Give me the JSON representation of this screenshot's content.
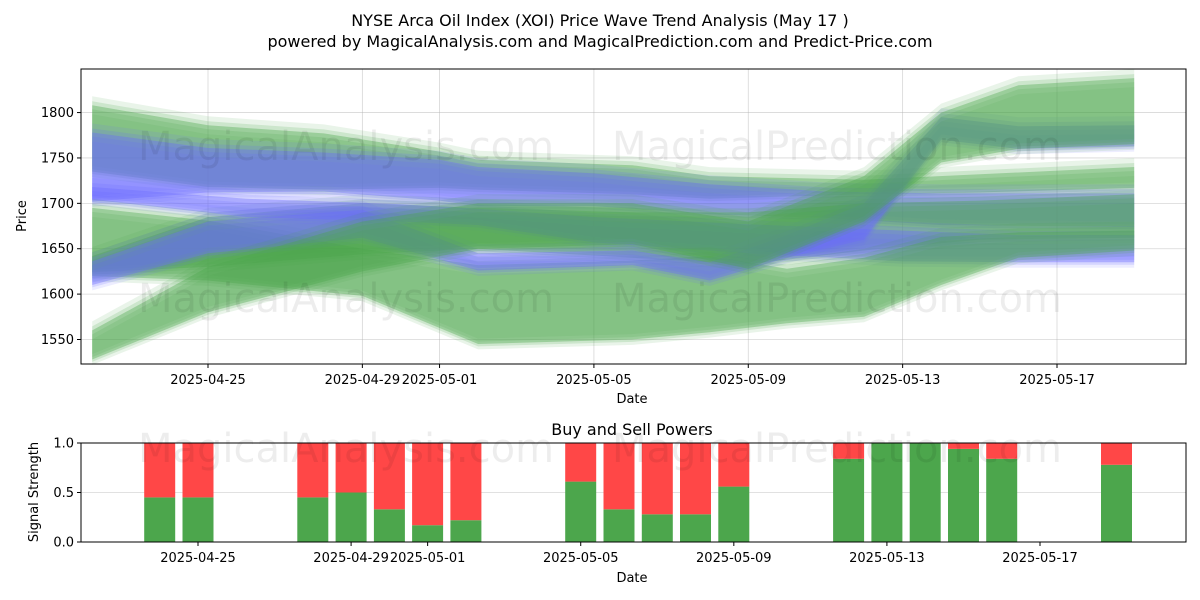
{
  "title_line1": "NYSE Arca Oil Index (XOI) Price Wave Trend Analysis (May 17 )",
  "title_line2": "powered by MagicalAnalysis.com and MagicalPrediction.com and Predict-Price.com",
  "watermarks": [
    "MagicalAnalysis.com",
    "MagicalPrediction.com"
  ],
  "colors": {
    "green": "#4ca84c",
    "blue": "#6b6bff",
    "buy": "#4ca64c",
    "sell": "#ff4747"
  },
  "chart_data": [
    {
      "type": "area",
      "title": "",
      "xlabel": "Date",
      "ylabel": "Price",
      "ylim": [
        1523,
        1848
      ],
      "x_ticks": [
        "2025-04-25",
        "2025-04-29",
        "2025-05-01",
        "2025-05-05",
        "2025-05-09",
        "2025-05-13",
        "2025-05-17"
      ],
      "y_ticks": [
        1550,
        1600,
        1650,
        1700,
        1750,
        1800
      ],
      "grid": true,
      "series": [
        {
          "color": "green",
          "x": [
            "2025-04-22",
            "2025-04-25",
            "2025-04-28",
            "2025-05-01",
            "2025-05-02",
            "2025-05-06",
            "2025-05-08",
            "2025-05-12",
            "2025-05-15",
            "2025-05-19"
          ],
          "lower": [
            1735,
            1718,
            1715,
            1717,
            1715,
            1710,
            1705,
            1710,
            1712,
            1717
          ],
          "upper": [
            1808,
            1786,
            1777,
            1757,
            1748,
            1742,
            1730,
            1726,
            1732,
            1740
          ]
        },
        {
          "color": "blue",
          "x": [
            "2025-04-22",
            "2025-04-25",
            "2025-04-28",
            "2025-05-01",
            "2025-05-02",
            "2025-05-05",
            "2025-05-08",
            "2025-05-11",
            "2025-05-14",
            "2025-05-19"
          ],
          "lower": [
            1702,
            1712,
            1713,
            1703,
            1697,
            1697,
            1688,
            1684,
            1676,
            1674
          ],
          "upper": [
            1778,
            1761,
            1756,
            1748,
            1740,
            1733,
            1721,
            1713,
            1711,
            1711
          ]
        },
        {
          "color": "green",
          "x": [
            "2025-04-22",
            "2025-04-25",
            "2025-04-29",
            "2025-05-02",
            "2025-05-06",
            "2025-05-09",
            "2025-05-12",
            "2025-05-15",
            "2025-05-19"
          ],
          "lower": [
            1624,
            1630,
            1644,
            1650,
            1640,
            1633,
            1648,
            1660,
            1662
          ],
          "upper": [
            1642,
            1685,
            1700,
            1695,
            1690,
            1690,
            1700,
            1703,
            1710
          ]
        },
        {
          "color": "blue",
          "x": [
            "2025-04-22",
            "2025-04-26",
            "2025-04-30",
            "2025-05-02",
            "2025-05-05",
            "2025-05-09",
            "2025-05-13",
            "2025-05-16",
            "2025-05-19"
          ],
          "lower": [
            1704,
            1685,
            1680,
            1676,
            1657,
            1645,
            1636,
            1635,
            1635
          ],
          "upper": [
            1718,
            1705,
            1699,
            1694,
            1685,
            1677,
            1670,
            1665,
            1665
          ]
        },
        {
          "color": "green",
          "x": [
            "2025-04-22",
            "2025-04-25",
            "2025-04-29",
            "2025-05-02",
            "2025-05-06",
            "2025-05-08",
            "2025-05-10",
            "2025-05-12",
            "2025-05-14",
            "2025-05-16",
            "2025-05-19"
          ],
          "lower": [
            1620,
            1615,
            1598,
            1545,
            1550,
            1558,
            1568,
            1575,
            1610,
            1640,
            1648
          ],
          "upper": [
            1695,
            1681,
            1650,
            1632,
            1637,
            1642,
            1628,
            1640,
            1663,
            1668,
            1670
          ]
        },
        {
          "color": "blue",
          "x": [
            "2025-04-22",
            "2025-04-25",
            "2025-04-29",
            "2025-05-02",
            "2025-05-06",
            "2025-05-08",
            "2025-05-10",
            "2025-05-12",
            "2025-05-14",
            "2025-05-16",
            "2025-05-19"
          ],
          "lower": [
            1610,
            1645,
            1662,
            1626,
            1632,
            1615,
            1640,
            1660,
            1770,
            1760,
            1763
          ],
          "upper": [
            1636,
            1680,
            1693,
            1645,
            1648,
            1635,
            1665,
            1700,
            1795,
            1785,
            1786
          ]
        },
        {
          "color": "green",
          "x": [
            "2025-04-22",
            "2025-04-25",
            "2025-04-29",
            "2025-05-02",
            "2025-05-06",
            "2025-05-09",
            "2025-05-12",
            "2025-05-14",
            "2025-05-16",
            "2025-05-19"
          ],
          "lower": [
            1528,
            1580,
            1625,
            1650,
            1655,
            1628,
            1680,
            1745,
            1760,
            1765
          ],
          "upper": [
            1560,
            1630,
            1680,
            1700,
            1700,
            1680,
            1730,
            1800,
            1830,
            1838
          ]
        }
      ]
    },
    {
      "type": "bar",
      "title": "Buy and Sell Powers",
      "xlabel": "Date",
      "ylabel": "Signal Strength",
      "ylim": [
        0,
        1
      ],
      "x_ticks": [
        "2025-04-25",
        "2025-04-29",
        "2025-05-01",
        "2025-05-05",
        "2025-05-09",
        "2025-05-13",
        "2025-05-17"
      ],
      "y_ticks": [
        "0.0",
        "0.5",
        "1.0"
      ],
      "categories": [
        "2025-04-24",
        "2025-04-25",
        "2025-04-28",
        "2025-04-29",
        "2025-04-30",
        "2025-05-01",
        "2025-05-02",
        "2025-05-05",
        "2025-05-06",
        "2025-05-07",
        "2025-05-08",
        "2025-05-09",
        "2025-05-12",
        "2025-05-13",
        "2025-05-14",
        "2025-05-15",
        "2025-05-16",
        "2025-05-19"
      ],
      "series": [
        {
          "color": "buy",
          "values": [
            0.45,
            0.45,
            0.45,
            0.5,
            0.33,
            0.17,
            0.22,
            0.61,
            0.33,
            0.28,
            0.28,
            0.56,
            0.84,
            1.0,
            1.0,
            0.94,
            0.84,
            0.78
          ]
        },
        {
          "color": "sell",
          "values": [
            0.55,
            0.55,
            0.55,
            0.5,
            0.67,
            0.83,
            0.78,
            0.39,
            0.67,
            0.72,
            0.72,
            0.44,
            0.16,
            0.0,
            0.0,
            0.06,
            0.16,
            0.22
          ]
        }
      ]
    }
  ]
}
